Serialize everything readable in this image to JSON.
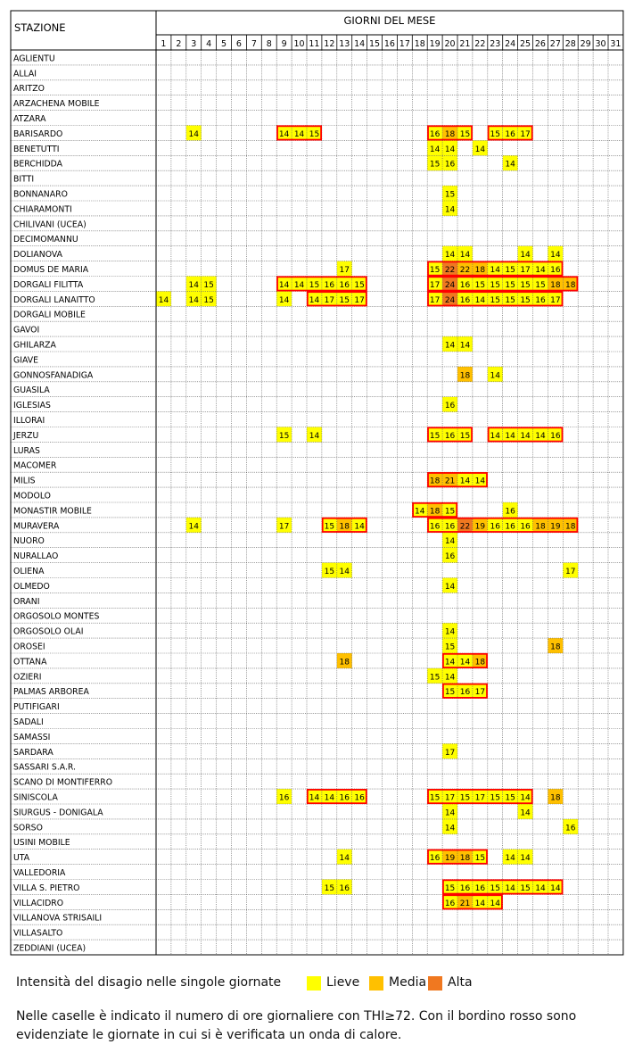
{
  "chart_data": {
    "type": "table",
    "title": "GIORNI DEL MESE",
    "station_header": "STAZIONE",
    "days": [
      1,
      2,
      3,
      4,
      5,
      6,
      7,
      8,
      9,
      10,
      11,
      12,
      13,
      14,
      15,
      16,
      17,
      18,
      19,
      20,
      21,
      22,
      23,
      24,
      25,
      26,
      27,
      28,
      29,
      30,
      31
    ],
    "colors": {
      "lieve": "#ffff00",
      "media": "#ffc000",
      "alta": "#f07820",
      "border": "#ff0000"
    },
    "stations": [
      {
        "name": "AGLIENTU",
        "cells": [],
        "waves": []
      },
      {
        "name": "ALLAI",
        "cells": [],
        "waves": []
      },
      {
        "name": "ARITZO",
        "cells": [],
        "waves": []
      },
      {
        "name": "ARZACHENA MOBILE",
        "cells": [],
        "waves": []
      },
      {
        "name": "ATZARA",
        "cells": [],
        "waves": []
      },
      {
        "name": "BARISARDO",
        "cells": [
          [
            3,
            14,
            "L"
          ],
          [
            9,
            14,
            "L"
          ],
          [
            10,
            14,
            "L"
          ],
          [
            11,
            15,
            "L"
          ],
          [
            19,
            16,
            "L"
          ],
          [
            20,
            18,
            "M"
          ],
          [
            21,
            15,
            "L"
          ],
          [
            23,
            15,
            "L"
          ],
          [
            24,
            16,
            "L"
          ],
          [
            25,
            17,
            "L"
          ]
        ],
        "waves": [
          [
            9,
            11
          ],
          [
            19,
            21
          ],
          [
            23,
            25
          ]
        ]
      },
      {
        "name": "BENETUTTI",
        "cells": [
          [
            19,
            14,
            "L"
          ],
          [
            20,
            14,
            "L"
          ],
          [
            22,
            14,
            "L"
          ]
        ],
        "waves": []
      },
      {
        "name": "BERCHIDDA",
        "cells": [
          [
            19,
            15,
            "L"
          ],
          [
            20,
            16,
            "L"
          ],
          [
            24,
            14,
            "L"
          ]
        ],
        "waves": []
      },
      {
        "name": "BITTI",
        "cells": [],
        "waves": []
      },
      {
        "name": "BONNANARO",
        "cells": [
          [
            20,
            15,
            "L"
          ]
        ],
        "waves": []
      },
      {
        "name": "CHIARAMONTI",
        "cells": [
          [
            20,
            14,
            "L"
          ]
        ],
        "waves": []
      },
      {
        "name": "CHILIVANI (UCEA)",
        "cells": [],
        "waves": []
      },
      {
        "name": "DECIMOMANNU",
        "cells": [],
        "waves": []
      },
      {
        "name": "DOLIANOVA",
        "cells": [
          [
            20,
            14,
            "L"
          ],
          [
            21,
            14,
            "L"
          ],
          [
            25,
            14,
            "L"
          ],
          [
            27,
            14,
            "L"
          ]
        ],
        "waves": []
      },
      {
        "name": "DOMUS DE MARIA",
        "cells": [
          [
            13,
            17,
            "L"
          ],
          [
            19,
            15,
            "L"
          ],
          [
            20,
            22,
            "A"
          ],
          [
            21,
            22,
            "M"
          ],
          [
            22,
            18,
            "M"
          ],
          [
            23,
            14,
            "L"
          ],
          [
            24,
            15,
            "L"
          ],
          [
            25,
            17,
            "L"
          ],
          [
            26,
            14,
            "L"
          ],
          [
            27,
            16,
            "L"
          ]
        ],
        "waves": [
          [
            19,
            27
          ]
        ]
      },
      {
        "name": "DORGALI FILITTA",
        "cells": [
          [
            3,
            14,
            "L"
          ],
          [
            4,
            15,
            "L"
          ],
          [
            9,
            14,
            "L"
          ],
          [
            10,
            14,
            "L"
          ],
          [
            11,
            15,
            "L"
          ],
          [
            12,
            16,
            "L"
          ],
          [
            13,
            16,
            "L"
          ],
          [
            14,
            15,
            "L"
          ],
          [
            19,
            17,
            "L"
          ],
          [
            20,
            24,
            "A"
          ],
          [
            21,
            16,
            "L"
          ],
          [
            22,
            15,
            "L"
          ],
          [
            23,
            15,
            "L"
          ],
          [
            24,
            15,
            "L"
          ],
          [
            25,
            15,
            "L"
          ],
          [
            26,
            15,
            "L"
          ],
          [
            27,
            18,
            "M"
          ],
          [
            28,
            18,
            "M"
          ]
        ],
        "waves": [
          [
            9,
            14
          ],
          [
            19,
            28
          ]
        ]
      },
      {
        "name": "DORGALI LANAITTO",
        "cells": [
          [
            1,
            14,
            "L"
          ],
          [
            3,
            14,
            "L"
          ],
          [
            4,
            15,
            "L"
          ],
          [
            9,
            14,
            "L"
          ],
          [
            11,
            14,
            "L"
          ],
          [
            12,
            17,
            "L"
          ],
          [
            13,
            15,
            "L"
          ],
          [
            14,
            17,
            "L"
          ],
          [
            19,
            17,
            "L"
          ],
          [
            20,
            24,
            "A"
          ],
          [
            21,
            16,
            "L"
          ],
          [
            22,
            14,
            "L"
          ],
          [
            23,
            15,
            "L"
          ],
          [
            24,
            15,
            "L"
          ],
          [
            25,
            15,
            "L"
          ],
          [
            26,
            16,
            "L"
          ],
          [
            27,
            17,
            "L"
          ]
        ],
        "waves": [
          [
            11,
            14
          ],
          [
            19,
            27
          ]
        ]
      },
      {
        "name": "DORGALI MOBILE",
        "cells": [],
        "waves": []
      },
      {
        "name": "GAVOI",
        "cells": [],
        "waves": []
      },
      {
        "name": "GHILARZA",
        "cells": [
          [
            20,
            14,
            "L"
          ],
          [
            21,
            14,
            "L"
          ]
        ],
        "waves": []
      },
      {
        "name": "GIAVE",
        "cells": [],
        "waves": []
      },
      {
        "name": "GONNOSFANADIGA",
        "cells": [
          [
            21,
            18,
            "M"
          ],
          [
            23,
            14,
            "L"
          ]
        ],
        "waves": []
      },
      {
        "name": "GUASILA",
        "cells": [],
        "waves": []
      },
      {
        "name": "IGLESIAS",
        "cells": [
          [
            20,
            16,
            "L"
          ]
        ],
        "waves": []
      },
      {
        "name": "ILLORAI",
        "cells": [],
        "waves": []
      },
      {
        "name": "JERZU",
        "cells": [
          [
            9,
            15,
            "L"
          ],
          [
            11,
            14,
            "L"
          ],
          [
            19,
            15,
            "L"
          ],
          [
            20,
            16,
            "L"
          ],
          [
            21,
            15,
            "L"
          ],
          [
            23,
            14,
            "L"
          ],
          [
            24,
            14,
            "L"
          ],
          [
            25,
            14,
            "L"
          ],
          [
            26,
            14,
            "L"
          ],
          [
            27,
            16,
            "L"
          ]
        ],
        "waves": [
          [
            19,
            21
          ],
          [
            23,
            27
          ]
        ]
      },
      {
        "name": "LURAS",
        "cells": [],
        "waves": []
      },
      {
        "name": "MACOMER",
        "cells": [],
        "waves": []
      },
      {
        "name": "MILIS",
        "cells": [
          [
            19,
            18,
            "M"
          ],
          [
            20,
            21,
            "M"
          ],
          [
            21,
            14,
            "L"
          ],
          [
            22,
            14,
            "L"
          ]
        ],
        "waves": [
          [
            19,
            22
          ]
        ]
      },
      {
        "name": "MODOLO",
        "cells": [],
        "waves": []
      },
      {
        "name": "MONASTIR MOBILE",
        "cells": [
          [
            18,
            14,
            "L"
          ],
          [
            19,
            18,
            "M"
          ],
          [
            20,
            15,
            "L"
          ],
          [
            24,
            16,
            "L"
          ]
        ],
        "waves": [
          [
            18,
            20
          ]
        ]
      },
      {
        "name": "MURAVERA",
        "cells": [
          [
            3,
            14,
            "L"
          ],
          [
            9,
            17,
            "L"
          ],
          [
            12,
            15,
            "L"
          ],
          [
            13,
            18,
            "M"
          ],
          [
            14,
            14,
            "L"
          ],
          [
            19,
            16,
            "L"
          ],
          [
            20,
            16,
            "L"
          ],
          [
            21,
            22,
            "A"
          ],
          [
            22,
            19,
            "M"
          ],
          [
            23,
            16,
            "L"
          ],
          [
            24,
            16,
            "L"
          ],
          [
            25,
            16,
            "L"
          ],
          [
            26,
            18,
            "M"
          ],
          [
            27,
            19,
            "M"
          ],
          [
            28,
            18,
            "M"
          ]
        ],
        "waves": [
          [
            12,
            14
          ],
          [
            19,
            28
          ]
        ]
      },
      {
        "name": "NUORO",
        "cells": [
          [
            20,
            14,
            "L"
          ]
        ],
        "waves": []
      },
      {
        "name": "NURALLAO",
        "cells": [
          [
            20,
            16,
            "L"
          ]
        ],
        "waves": []
      },
      {
        "name": "OLIENA",
        "cells": [
          [
            12,
            15,
            "L"
          ],
          [
            13,
            14,
            "L"
          ],
          [
            28,
            17,
            "L"
          ]
        ],
        "waves": []
      },
      {
        "name": "OLMEDO",
        "cells": [
          [
            20,
            14,
            "L"
          ]
        ],
        "waves": []
      },
      {
        "name": "ORANI",
        "cells": [],
        "waves": []
      },
      {
        "name": "ORGOSOLO MONTES",
        "cells": [],
        "waves": []
      },
      {
        "name": "ORGOSOLO OLAI",
        "cells": [
          [
            20,
            14,
            "L"
          ]
        ],
        "waves": []
      },
      {
        "name": "OROSEI",
        "cells": [
          [
            20,
            15,
            "L"
          ],
          [
            27,
            18,
            "M"
          ]
        ],
        "waves": []
      },
      {
        "name": "OTTANA",
        "cells": [
          [
            13,
            18,
            "M"
          ],
          [
            20,
            14,
            "L"
          ],
          [
            21,
            14,
            "L"
          ],
          [
            22,
            18,
            "M"
          ]
        ],
        "waves": [
          [
            20,
            22
          ]
        ]
      },
      {
        "name": "OZIERI",
        "cells": [
          [
            19,
            15,
            "L"
          ],
          [
            20,
            14,
            "L"
          ]
        ],
        "waves": []
      },
      {
        "name": "PALMAS ARBOREA",
        "cells": [
          [
            20,
            15,
            "L"
          ],
          [
            21,
            16,
            "L"
          ],
          [
            22,
            17,
            "L"
          ]
        ],
        "waves": [
          [
            20,
            22
          ]
        ]
      },
      {
        "name": "PUTIFIGARI",
        "cells": [],
        "waves": []
      },
      {
        "name": "SADALI",
        "cells": [],
        "waves": []
      },
      {
        "name": "SAMASSI",
        "cells": [],
        "waves": []
      },
      {
        "name": "SARDARA",
        "cells": [
          [
            20,
            17,
            "L"
          ]
        ],
        "waves": []
      },
      {
        "name": "SASSARI S.A.R.",
        "cells": [],
        "waves": []
      },
      {
        "name": "SCANO DI MONTIFERRO",
        "cells": [],
        "waves": []
      },
      {
        "name": "SINISCOLA",
        "cells": [
          [
            9,
            16,
            "L"
          ],
          [
            11,
            14,
            "L"
          ],
          [
            12,
            14,
            "L"
          ],
          [
            13,
            16,
            "L"
          ],
          [
            14,
            16,
            "L"
          ],
          [
            19,
            15,
            "L"
          ],
          [
            20,
            17,
            "L"
          ],
          [
            21,
            15,
            "L"
          ],
          [
            22,
            17,
            "L"
          ],
          [
            23,
            15,
            "L"
          ],
          [
            24,
            15,
            "L"
          ],
          [
            25,
            14,
            "L"
          ],
          [
            27,
            18,
            "M"
          ]
        ],
        "waves": [
          [
            11,
            14
          ],
          [
            19,
            25
          ]
        ]
      },
      {
        "name": "SIURGUS - DONIGALA",
        "cells": [
          [
            20,
            14,
            "L"
          ],
          [
            25,
            14,
            "L"
          ]
        ],
        "waves": []
      },
      {
        "name": "SORSO",
        "cells": [
          [
            20,
            14,
            "L"
          ],
          [
            28,
            16,
            "L"
          ]
        ],
        "waves": []
      },
      {
        "name": "USINI MOBILE",
        "cells": [],
        "waves": []
      },
      {
        "name": "UTA",
        "cells": [
          [
            13,
            14,
            "L"
          ],
          [
            19,
            16,
            "L"
          ],
          [
            20,
            19,
            "M"
          ],
          [
            21,
            18,
            "M"
          ],
          [
            22,
            15,
            "L"
          ],
          [
            24,
            14,
            "L"
          ],
          [
            25,
            14,
            "L"
          ]
        ],
        "waves": [
          [
            19,
            22
          ]
        ]
      },
      {
        "name": "VALLEDORIA",
        "cells": [],
        "waves": []
      },
      {
        "name": "VILLA S. PIETRO",
        "cells": [
          [
            12,
            15,
            "L"
          ],
          [
            13,
            16,
            "L"
          ],
          [
            20,
            15,
            "L"
          ],
          [
            21,
            16,
            "L"
          ],
          [
            22,
            16,
            "L"
          ],
          [
            23,
            15,
            "L"
          ],
          [
            24,
            14,
            "L"
          ],
          [
            25,
            15,
            "L"
          ],
          [
            26,
            14,
            "L"
          ],
          [
            27,
            14,
            "L"
          ]
        ],
        "waves": [
          [
            20,
            27
          ]
        ]
      },
      {
        "name": "VILLACIDRO",
        "cells": [
          [
            20,
            16,
            "L"
          ],
          [
            21,
            21,
            "M"
          ],
          [
            22,
            14,
            "L"
          ],
          [
            23,
            14,
            "L"
          ]
        ],
        "waves": [
          [
            20,
            23
          ]
        ]
      },
      {
        "name": "VILLANOVA STRISAILI",
        "cells": [],
        "waves": []
      },
      {
        "name": "VILLASALTO",
        "cells": [],
        "waves": []
      },
      {
        "name": "ZEDDIANI  (UCEA)",
        "cells": [],
        "waves": []
      }
    ]
  },
  "legend": {
    "title": "Intensità del disagio nelle singole giornate",
    "items": [
      {
        "label": "Lieve",
        "color": "#ffff00"
      },
      {
        "label": "Media",
        "color": "#ffc000"
      },
      {
        "label": "Alta",
        "color": "#f07820"
      }
    ]
  },
  "footnote": "Nelle caselle è indicato il numero di ore giornaliere con THI≥72. Con il bordino rosso sono evidenziate le giornate in cui si è verificata un onda di calore."
}
